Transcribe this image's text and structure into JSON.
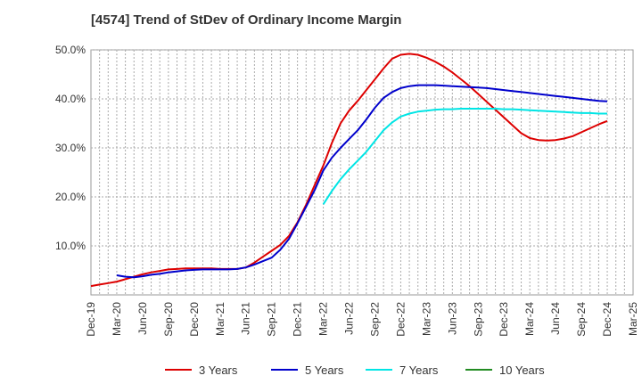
{
  "chart_data": {
    "type": "line",
    "title": "[4574]  Trend of StDev of Ordinary Income Margin",
    "xlabel": "",
    "ylabel": "",
    "ylim": [
      0,
      50
    ],
    "x_tick_labels": [
      "Dec-19",
      "Mar-20",
      "Jun-20",
      "Sep-20",
      "Dec-20",
      "Mar-21",
      "Jun-21",
      "Sep-21",
      "Dec-21",
      "Mar-22",
      "Jun-22",
      "Sep-22",
      "Dec-22",
      "Mar-23",
      "Jun-23",
      "Sep-23",
      "Dec-23",
      "Mar-24",
      "Jun-24",
      "Sep-24",
      "Dec-24",
      "Mar-25"
    ],
    "y_ticks": [
      10,
      20,
      30,
      40,
      50
    ],
    "y_tick_labels": [
      "10.0%",
      "20.0%",
      "30.0%",
      "40.0%",
      "50.0%"
    ],
    "grid": true,
    "legend_position": "bottom",
    "series": [
      {
        "name": "3 Years",
        "color": "#dd0000",
        "x": [
          "2019-12",
          "2020-01",
          "2020-02",
          "2020-03",
          "2020-04",
          "2020-05",
          "2020-06",
          "2020-07",
          "2020-08",
          "2020-09",
          "2020-10",
          "2020-11",
          "2020-12",
          "2021-01",
          "2021-02",
          "2021-03",
          "2021-04",
          "2021-05",
          "2021-06",
          "2021-07",
          "2021-08",
          "2021-09",
          "2021-10",
          "2021-11",
          "2021-12",
          "2022-01",
          "2022-02",
          "2022-03",
          "2022-04",
          "2022-05",
          "2022-06",
          "2022-07",
          "2022-08",
          "2022-09",
          "2022-10",
          "2022-11",
          "2022-12",
          "2023-01",
          "2023-02",
          "2023-03",
          "2023-04",
          "2023-05",
          "2023-06",
          "2023-07",
          "2023-08",
          "2023-09",
          "2023-10",
          "2023-11",
          "2023-12",
          "2024-01",
          "2024-02",
          "2024-03",
          "2024-04",
          "2024-05",
          "2024-06",
          "2024-07",
          "2024-08",
          "2024-09",
          "2024-10",
          "2024-11",
          "2024-12"
        ],
        "values": [
          1.8,
          2.1,
          2.4,
          2.7,
          3.2,
          3.7,
          4.2,
          4.6,
          4.9,
          5.2,
          5.3,
          5.4,
          5.4,
          5.4,
          5.4,
          5.3,
          5.3,
          5.3,
          5.6,
          6.6,
          7.8,
          9.0,
          10.2,
          12.0,
          14.8,
          18.4,
          22.4,
          26.4,
          31.0,
          35.0,
          37.6,
          39.6,
          41.8,
          44.0,
          46.2,
          48.2,
          49.0,
          49.2,
          49.0,
          48.4,
          47.6,
          46.6,
          45.4,
          44.0,
          42.6,
          41.0,
          39.4,
          37.8,
          36.2,
          34.6,
          33.0,
          32.0,
          31.6,
          31.5,
          31.6,
          31.9,
          32.4,
          33.2,
          34.0,
          34.8,
          35.5
        ]
      },
      {
        "name": "5 Years",
        "color": "#0000cc",
        "x": [
          "2020-03",
          "2020-04",
          "2020-05",
          "2020-06",
          "2020-07",
          "2020-08",
          "2020-09",
          "2020-10",
          "2020-11",
          "2020-12",
          "2021-01",
          "2021-02",
          "2021-03",
          "2021-04",
          "2021-05",
          "2021-06",
          "2021-07",
          "2021-08",
          "2021-09",
          "2021-10",
          "2021-11",
          "2021-12",
          "2022-01",
          "2022-02",
          "2022-03",
          "2022-04",
          "2022-05",
          "2022-06",
          "2022-07",
          "2022-08",
          "2022-09",
          "2022-10",
          "2022-11",
          "2022-12",
          "2023-01",
          "2023-02",
          "2023-03",
          "2023-04",
          "2023-05",
          "2023-06",
          "2023-07",
          "2023-08",
          "2023-09",
          "2023-10",
          "2023-11",
          "2023-12",
          "2024-01",
          "2024-02",
          "2024-03",
          "2024-04",
          "2024-05",
          "2024-06",
          "2024-07",
          "2024-08",
          "2024-09",
          "2024-10",
          "2024-11",
          "2024-12"
        ],
        "values": [
          4.0,
          3.7,
          3.6,
          3.8,
          4.1,
          4.3,
          4.6,
          4.8,
          5.0,
          5.1,
          5.2,
          5.2,
          5.2,
          5.2,
          5.3,
          5.6,
          6.2,
          6.9,
          7.6,
          9.2,
          11.4,
          14.6,
          18.0,
          21.4,
          25.4,
          28.0,
          30.0,
          31.8,
          33.6,
          35.8,
          38.2,
          40.2,
          41.4,
          42.2,
          42.6,
          42.8,
          42.8,
          42.8,
          42.7,
          42.6,
          42.5,
          42.4,
          42.3,
          42.2,
          42.0,
          41.8,
          41.6,
          41.4,
          41.2,
          41.0,
          40.8,
          40.6,
          40.4,
          40.2,
          40.0,
          39.8,
          39.6,
          39.5
        ]
      },
      {
        "name": "7 Years",
        "color": "#00e5e5",
        "x": [
          "2022-03",
          "2022-04",
          "2022-05",
          "2022-06",
          "2022-07",
          "2022-08",
          "2022-09",
          "2022-10",
          "2022-11",
          "2022-12",
          "2023-01",
          "2023-02",
          "2023-03",
          "2023-04",
          "2023-05",
          "2023-06",
          "2023-07",
          "2023-08",
          "2023-09",
          "2023-10",
          "2023-11",
          "2023-12",
          "2024-01",
          "2024-02",
          "2024-03",
          "2024-04",
          "2024-05",
          "2024-06",
          "2024-07",
          "2024-08",
          "2024-09",
          "2024-10",
          "2024-11",
          "2024-12"
        ],
        "values": [
          18.5,
          21.2,
          23.6,
          25.6,
          27.4,
          29.2,
          31.4,
          33.6,
          35.2,
          36.4,
          37.0,
          37.4,
          37.6,
          37.8,
          37.9,
          37.9,
          38.0,
          38.0,
          38.0,
          38.0,
          38.0,
          37.9,
          37.9,
          37.8,
          37.7,
          37.6,
          37.5,
          37.4,
          37.3,
          37.2,
          37.1,
          37.1,
          37.0,
          37.0
        ]
      },
      {
        "name": "10 Years",
        "color": "#228b22",
        "x": [],
        "values": []
      }
    ]
  }
}
